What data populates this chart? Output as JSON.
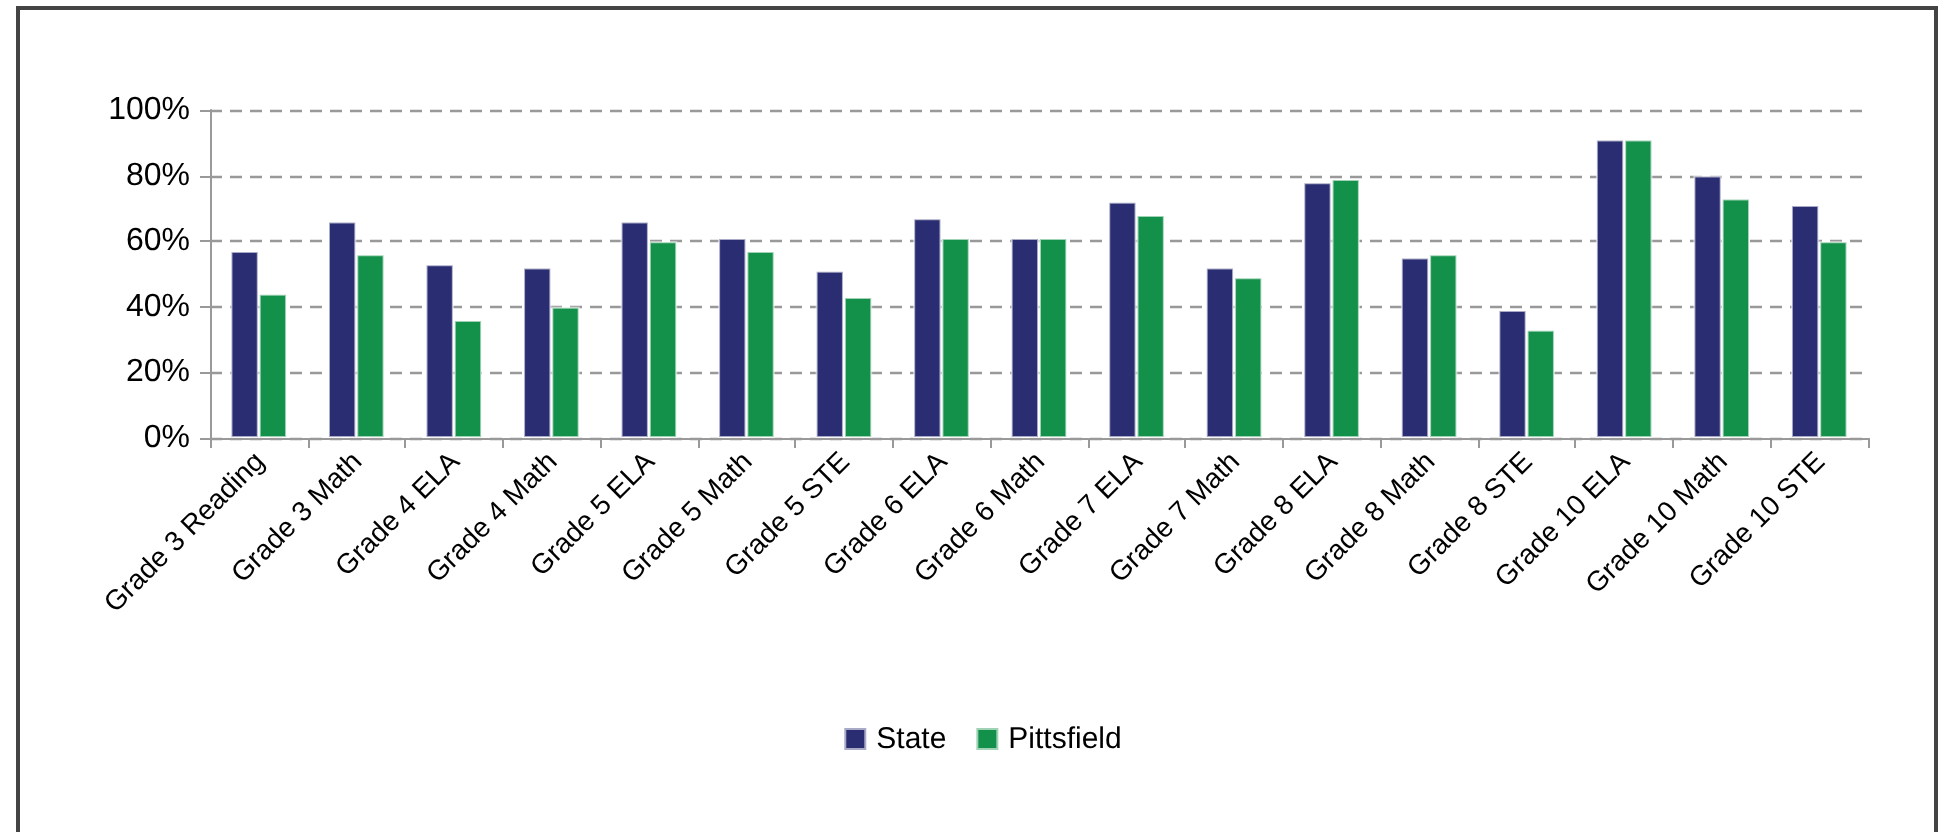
{
  "chart_data": {
    "type": "bar",
    "categories": [
      "Grade 3 Reading",
      "Grade 3 Math",
      "Grade 4 ELA",
      "Grade 4 Math",
      "Grade 5 ELA",
      "Grade 5 Math",
      "Grade 5 STE",
      "Grade 6 ELA",
      "Grade 6 Math",
      "Grade 7 ELA",
      "Grade 7 Math",
      "Grade 8 ELA",
      "Grade 8 Math",
      "Grade 8 STE",
      "Grade 10 ELA",
      "Grade 10 Math",
      "Grade 10 STE"
    ],
    "series": [
      {
        "name": "State",
        "color": "#2a2d72",
        "values": [
          57,
          66,
          53,
          52,
          66,
          61,
          51,
          67,
          61,
          72,
          52,
          78,
          55,
          39,
          91,
          80,
          71
        ]
      },
      {
        "name": "Pittsfield",
        "color": "#13904a",
        "values": [
          44,
          56,
          36,
          40,
          60,
          57,
          43,
          61,
          61,
          68,
          49,
          79,
          56,
          33,
          91,
          73,
          60
        ]
      }
    ],
    "ylim": [
      0,
      100
    ],
    "yticks": [
      {
        "value": 0,
        "label": "0%"
      },
      {
        "value": 20,
        "label": "20%"
      },
      {
        "value": 40,
        "label": "40%"
      },
      {
        "value": 60,
        "label": "60%"
      },
      {
        "value": 80,
        "label": "80%"
      },
      {
        "value": 100,
        "label": "100%"
      }
    ],
    "grid": "y",
    "legend": "bottom"
  }
}
